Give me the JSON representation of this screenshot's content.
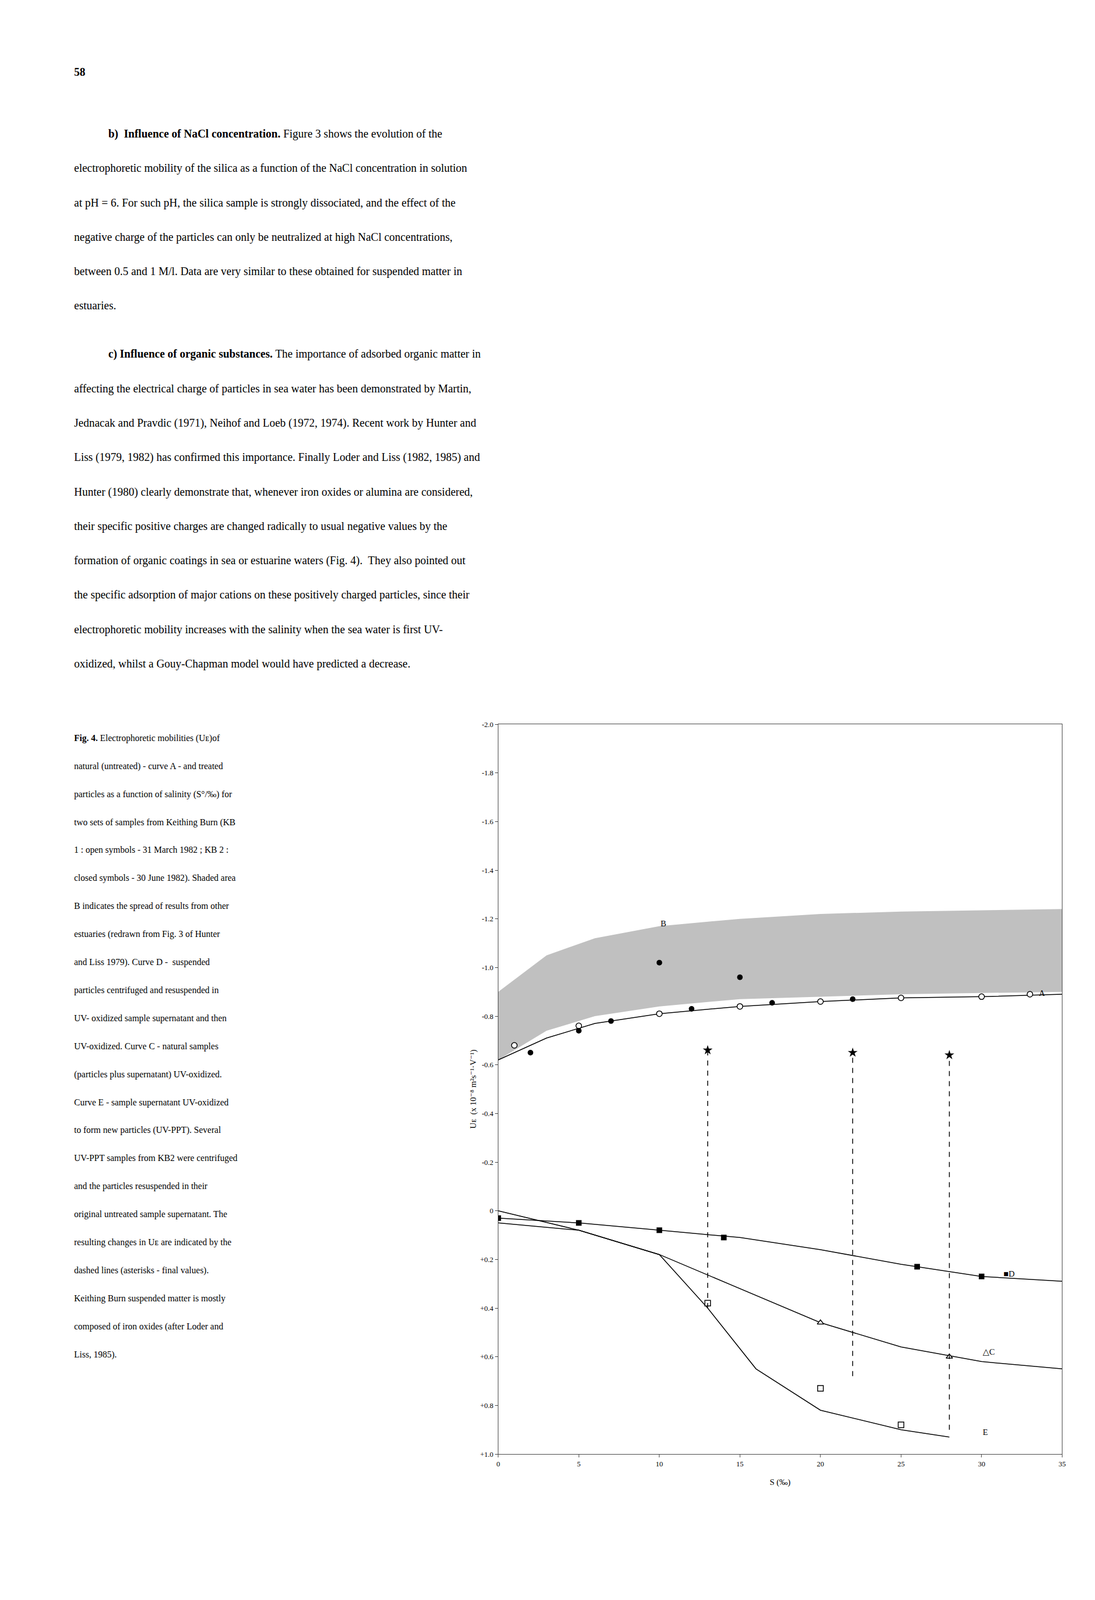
{
  "page_text": {
    "page_number": "58",
    "paragraphs": [
      {
        "bold": "b)  Influence of NaCl concentration.",
        "text": " Figure 3 shows the evolution of the",
        "lines": [
          "electrophoretic mobility of the silica as a function of the NaCl concentration in solution",
          "at pH = 6. For such pH, the silica sample is strongly dissociated, and the effect of the",
          "negative charge of the particles can only be neutralized at high NaCl concentrations,",
          "between 0.5 and 1 M/l. Data are very similar to these obtained for suspended matter in",
          "estuaries."
        ]
      },
      {
        "bold": "c) Influence of organic substances.",
        "text": " The importance of adsorbed organic matter in",
        "lines": [
          "affecting the electrical charge of particles in sea water has been demonstrated by Martin,",
          "Jednacak and Pravdic (1971), Neihof and Loeb (1972, 1974). Recent work by Hunter and",
          "Liss (1979, 1982) has confirmed this importance. Finally Loder and Liss (1982, 1985) and",
          "Hunter (1980) clearly demonstrate that, whenever iron oxides or alumina are considered,",
          "their specific positive charges are changed radically to usual negative values by the",
          "formation of organic coatings in sea or estuarine waters (Fig. 4).  They also pointed out",
          "the specific adsorption of major cations on these positively charged particles, since their",
          "electrophoretic mobility increases with the salinity when the sea water is first UV-",
          "oxidized, whilst a Gouy-Chapman model would have predicted a decrease."
        ]
      }
    ],
    "caption": {
      "bold": "Fig. 4.",
      "text": " Electrophoretic mobilities (Uᴇ)of",
      "lines": [
        "natural (untreated) - curve A - and treated",
        "particles as a function of salinity (S°/‰) for",
        "two sets of samples from Keithing Burn (KB",
        "1 : open symbols - 31 March 1982 ; KB 2 :",
        "closed symbols - 30 June 1982). Shaded area",
        "B indicates the spread of results from other",
        "estuaries (redrawn from Fig. 3 of Hunter",
        "and Liss 1979). Curve D -  suspended",
        "particles centrifuged and resuspended in",
        "UV- oxidized sample supernatant and then",
        "UV-oxidized. Curve C - natural samples",
        "(particles plus supernatant) UV-oxidized.",
        "Curve E - sample supernatant UV-oxidized",
        "to form new particles (UV-PPT). Several",
        "UV-PPT samples from KB2 were centrifuged",
        "and the particles resuspended in their",
        "original untreated sample supernatant. The",
        "resulting changes in Uᴇ are indicated by the",
        "dashed lines (asterisks - final values).",
        "Keithing Burn suspended matter is mostly",
        "composed of iron oxides (after Loder and",
        "Liss, 1985)."
      ]
    }
  },
  "chart_data": {
    "type": "line",
    "x_label": "S (‰⁠⁠)",
    "y_label": "Uᴇ  (x 10⁻⁸ m²s⁻¹·V⁻¹)",
    "xlim": [
      0,
      35
    ],
    "ylim": [
      1.0,
      -2.0
    ],
    "xticks": [
      0,
      5,
      10,
      15,
      20,
      25,
      30,
      35
    ],
    "yticks": [
      {
        "value": -2.0,
        "label": "-2.0"
      },
      -1.8,
      -1.6,
      -1.4,
      -1.2,
      {
        "value": -1.0,
        "label": "-1.0"
      },
      -0.8,
      -0.6,
      -0.4,
      -0.2,
      0,
      {
        "value": 0.2,
        "label": "+0.2"
      },
      {
        "value": 0.4,
        "label": "+0.4"
      },
      {
        "value": 0.6,
        "label": "+0.6"
      },
      {
        "value": 0.8,
        "label": "+0.8"
      },
      {
        "value": 1.0,
        "label": "+1.0"
      }
    ],
    "grid": false,
    "series": [
      {
        "type": "area",
        "color": "#c0c0c0",
        "x": [
          0,
          3,
          6,
          10,
          15,
          20,
          25,
          30,
          35
        ],
        "upper": [
          -0.62,
          -0.74,
          -0.8,
          -0.84,
          -0.87,
          -0.88,
          -0.89,
          -0.895,
          -0.9
        ],
        "lower": [
          -0.9,
          -1.05,
          -1.12,
          -1.17,
          -1.2,
          -1.22,
          -1.23,
          -1.235,
          -1.24
        ]
      },
      {
        "type": "scatter",
        "marker": "circle",
        "color": "#000000",
        "x": [
          10,
          15
        ],
        "values": [
          -1.02,
          -0.96
        ]
      },
      {
        "type": "line",
        "line_style": "solid",
        "color": "#000000",
        "x": [
          0,
          3,
          6,
          10,
          15,
          20,
          25,
          30,
          35
        ],
        "values": [
          -0.62,
          -0.71,
          -0.77,
          -0.81,
          -0.84,
          -0.86,
          -0.875,
          -0.88,
          -0.89
        ]
      },
      {
        "type": "scatter",
        "marker": "circle-open",
        "color": "#000000",
        "x": [
          1,
          5,
          10,
          15,
          20,
          25,
          30,
          33
        ],
        "values": [
          -0.68,
          -0.76,
          -0.81,
          -0.84,
          -0.86,
          -0.875,
          -0.88,
          -0.89
        ]
      },
      {
        "type": "scatter",
        "marker": "circle",
        "color": "#000000",
        "x": [
          2,
          5,
          7,
          12,
          17,
          22
        ],
        "values": [
          -0.65,
          -0.74,
          -0.78,
          -0.83,
          -0.855,
          -0.87
        ]
      },
      {
        "type": "line",
        "line_style": "solid",
        "color": "#000000",
        "x": [
          0,
          5,
          10,
          15,
          20,
          25,
          30,
          35
        ],
        "values": [
          0.0,
          0.08,
          0.18,
          0.32,
          0.46,
          0.56,
          0.62,
          0.65
        ]
      },
      {
        "type": "scatter",
        "marker": "triangle-up-open",
        "color": "#000000",
        "x": [
          20,
          28
        ],
        "values": [
          0.46,
          0.6
        ]
      },
      {
        "type": "line",
        "line_style": "solid",
        "color": "#000000",
        "x": [
          0,
          5,
          10,
          15,
          20,
          25,
          30,
          35
        ],
        "values": [
          0.03,
          0.05,
          0.08,
          0.11,
          0.16,
          0.22,
          0.27,
          0.29
        ]
      },
      {
        "type": "scatter",
        "marker": "square",
        "color": "#000000",
        "x": [
          0,
          5,
          10,
          14,
          26,
          30
        ],
        "values": [
          0.03,
          0.05,
          0.08,
          0.11,
          0.23,
          0.27
        ]
      },
      {
        "type": "line",
        "line_style": "solid",
        "color": "#000000",
        "x": [
          0,
          5,
          10,
          13,
          16,
          20,
          25,
          28
        ],
        "values": [
          0.05,
          0.08,
          0.18,
          0.4,
          0.65,
          0.82,
          0.9,
          0.93
        ]
      },
      {
        "type": "scatter",
        "marker": "square-open",
        "color": "#000000",
        "x": [
          13,
          20,
          25
        ],
        "values": [
          0.38,
          0.73,
          0.88
        ]
      },
      {
        "type": "line",
        "line_style": "dashed",
        "color": "#000000",
        "x": [
          13,
          13
        ],
        "values": [
          0.4,
          -0.66
        ]
      },
      {
        "type": "line",
        "line_style": "dashed",
        "color": "#000000",
        "x": [
          22,
          22
        ],
        "values": [
          0.68,
          -0.65
        ]
      },
      {
        "type": "line",
        "line_style": "dashed",
        "color": "#000000",
        "x": [
          28,
          28
        ],
        "values": [
          0.9,
          -0.64
        ]
      },
      {
        "type": "scatter",
        "marker": "star",
        "color": "#000000",
        "x": [
          13,
          22,
          28
        ],
        "values": [
          -0.66,
          -0.65,
          -0.64
        ]
      }
    ],
    "annotations": [
      {
        "text": "A",
        "x": 33.5,
        "y": -0.895
      },
      {
        "text": "B",
        "x": 10,
        "y": -1.18
      },
      {
        "text": "△C",
        "x": 30.0,
        "y": 0.58
      },
      {
        "text": "■D",
        "x": 31.3,
        "y": 0.26
      },
      {
        "text": "E",
        "x": 30.0,
        "y": 0.91
      }
    ]
  }
}
